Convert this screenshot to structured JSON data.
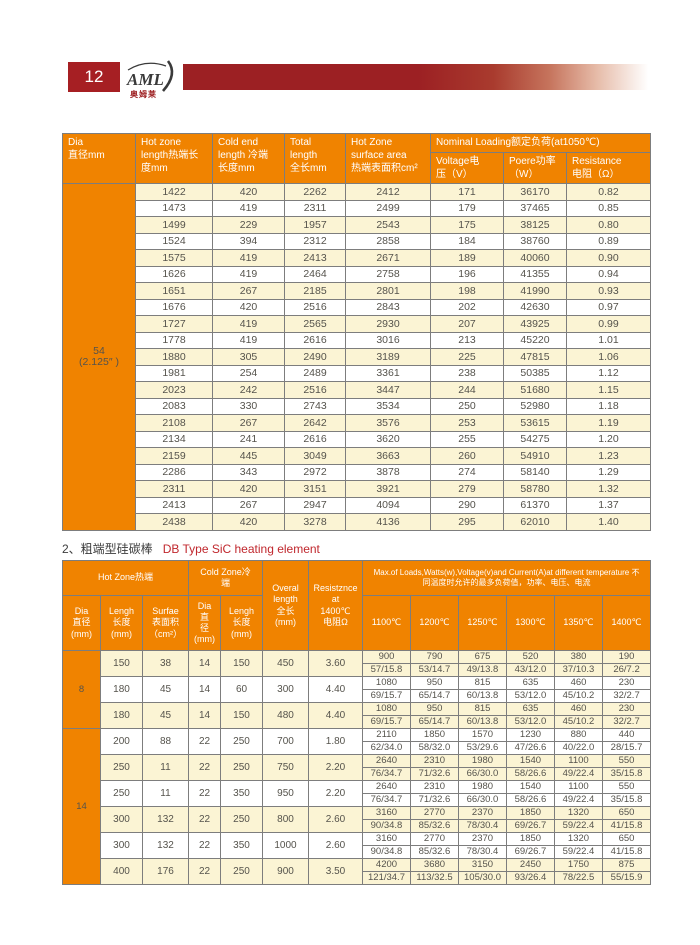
{
  "page": {
    "number": "12",
    "logo_text": "AML",
    "logo_sub": "奥姆莱"
  },
  "section2": {
    "title_zh": "2、粗端型硅碳棒",
    "title_en": "DB Type SiC heating element"
  },
  "colors": {
    "header_orange": "#F08300",
    "row_yellow": "#FBF4D4",
    "banner_red": "#9C2023",
    "badge_red": "#A61F23",
    "accent_red": "#C0272D"
  },
  "table1": {
    "header": {
      "dia": "Dia\n直径mm",
      "hot_zone": "Hot zone\nlength热端长\n度mm",
      "cold_end": "Cold end\nlength 冷端\n长度mm",
      "total": "Total\nlength\n全长mm",
      "surface": "Hot Zone\nsurface area\n热端表面积cm²",
      "nominal_group": "Nominal Loading额定负荷(at1050℃)",
      "voltage": "Voltage电\n压（V）",
      "power": "Poere功率\n（W）",
      "resistance": "Resistance\n电阻（Ω）"
    },
    "dia_label": "54\n(2.125″ )",
    "rows": [
      [
        "1422",
        "420",
        "2262",
        "2412",
        "171",
        "36170",
        "0.82"
      ],
      [
        "1473",
        "419",
        "2311",
        "2499",
        "179",
        "37465",
        "0.85"
      ],
      [
        "1499",
        "229",
        "1957",
        "2543",
        "175",
        "38125",
        "0.80"
      ],
      [
        "1524",
        "394",
        "2312",
        "2858",
        "184",
        "38760",
        "0.89"
      ],
      [
        "1575",
        "419",
        "2413",
        "2671",
        "189",
        "40060",
        "0.90"
      ],
      [
        "1626",
        "419",
        "2464",
        "2758",
        "196",
        "41355",
        "0.94"
      ],
      [
        "1651",
        "267",
        "2185",
        "2801",
        "198",
        "41990",
        "0.93"
      ],
      [
        "1676",
        "420",
        "2516",
        "2843",
        "202",
        "42630",
        "0.97"
      ],
      [
        "1727",
        "419",
        "2565",
        "2930",
        "207",
        "43925",
        "0.99"
      ],
      [
        "1778",
        "419",
        "2616",
        "3016",
        "213",
        "45220",
        "1.01"
      ],
      [
        "1880",
        "305",
        "2490",
        "3189",
        "225",
        "47815",
        "1.06"
      ],
      [
        "1981",
        "254",
        "2489",
        "3361",
        "238",
        "50385",
        "1.12"
      ],
      [
        "2023",
        "242",
        "2516",
        "3447",
        "244",
        "51680",
        "1.15"
      ],
      [
        "2083",
        "330",
        "2743",
        "3534",
        "250",
        "52980",
        "1.18"
      ],
      [
        "2108",
        "267",
        "2642",
        "3576",
        "253",
        "53615",
        "1.19"
      ],
      [
        "2134",
        "241",
        "2616",
        "3620",
        "255",
        "54275",
        "1.20"
      ],
      [
        "2159",
        "445",
        "3049",
        "3663",
        "260",
        "54910",
        "1.23"
      ],
      [
        "2286",
        "343",
        "2972",
        "3878",
        "274",
        "58140",
        "1.29"
      ],
      [
        "2311",
        "420",
        "3151",
        "3921",
        "279",
        "58780",
        "1.32"
      ],
      [
        "2413",
        "267",
        "2947",
        "4094",
        "290",
        "61370",
        "1.37"
      ],
      [
        "2438",
        "420",
        "3278",
        "4136",
        "295",
        "62010",
        "1.40"
      ]
    ]
  },
  "table2": {
    "header": {
      "hot_zone_group": "Hot Zone热端",
      "cold_zone_group": "Cold Zone冷\n端",
      "overall": "Overal\nlength\n全长\n(mm)",
      "resistance_1400": "Resistznce\nat\n1400℃\n电阻Ω",
      "max_loads": "Max.of Loads,Watts(w),Voltage(v)and Current(A)at different temperature 不同温度时允许的最多负荷值，功率、电压、电流",
      "hot_dia": "Dia\n直径\n(mm)",
      "hot_length": "Lengh\n长度\n(mm)",
      "hot_surface": "Surfae\n表面积\n（cm²）",
      "cold_dia": "Dia\n直\n径\n(mm)",
      "cold_length": "Lengh\n长度\n(mm)",
      "temps": [
        "1100℃",
        "1200℃",
        "1250℃",
        "1300℃",
        "1350℃",
        "1400℃"
      ]
    },
    "groups": [
      {
        "dia": "8",
        "rows": [
          {
            "left": [
              "150",
              "38",
              "14",
              "150",
              "450",
              "3.60"
            ],
            "line1": [
              "900",
              "790",
              "675",
              "520",
              "380",
              "190"
            ],
            "line2": [
              "57/15.8",
              "53/14.7",
              "49/13.8",
              "43/12.0",
              "37/10.3",
              "26/7.2"
            ]
          },
          {
            "left": [
              "180",
              "45",
              "14",
              "60",
              "300",
              "4.40"
            ],
            "line1": [
              "1080",
              "950",
              "815",
              "635",
              "460",
              "230"
            ],
            "line2": [
              "69/15.7",
              "65/14.7",
              "60/13.8",
              "53/12.0",
              "45/10.2",
              "32/2.7"
            ]
          },
          {
            "left": [
              "180",
              "45",
              "14",
              "150",
              "480",
              "4.40"
            ],
            "line1": [
              "1080",
              "950",
              "815",
              "635",
              "460",
              "230"
            ],
            "line2": [
              "69/15.7",
              "65/14.7",
              "60/13.8",
              "53/12.0",
              "45/10.2",
              "32/2.7"
            ]
          }
        ]
      },
      {
        "dia": "14",
        "rows": [
          {
            "left": [
              "200",
              "88",
              "22",
              "250",
              "700",
              "1.80"
            ],
            "line1": [
              "2110",
              "1850",
              "1570",
              "1230",
              "880",
              "440"
            ],
            "line2": [
              "62/34.0",
              "58/32.0",
              "53/29.6",
              "47/26.6",
              "40/22.0",
              "28/15.7"
            ]
          },
          {
            "left": [
              "250",
              "11",
              "22",
              "250",
              "750",
              "2.20"
            ],
            "line1": [
              "2640",
              "2310",
              "1980",
              "1540",
              "1100",
              "550"
            ],
            "line2": [
              "76/34.7",
              "71/32.6",
              "66/30.0",
              "58/26.6",
              "49/22.4",
              "35/15.8"
            ]
          },
          {
            "left": [
              "250",
              "11",
              "22",
              "350",
              "950",
              "2.20"
            ],
            "line1": [
              "2640",
              "2310",
              "1980",
              "1540",
              "1100",
              "550"
            ],
            "line2": [
              "76/34.7",
              "71/32.6",
              "66/30.0",
              "58/26.6",
              "49/22.4",
              "35/15.8"
            ]
          },
          {
            "left": [
              "300",
              "132",
              "22",
              "250",
              "800",
              "2.60"
            ],
            "line1": [
              "3160",
              "2770",
              "2370",
              "1850",
              "1320",
              "650"
            ],
            "line2": [
              "90/34.8",
              "85/32.6",
              "78/30.4",
              "69/26.7",
              "59/22.4",
              "41/15.8"
            ]
          },
          {
            "left": [
              "300",
              "132",
              "22",
              "350",
              "1000",
              "2.60"
            ],
            "line1": [
              "3160",
              "2770",
              "2370",
              "1850",
              "1320",
              "650"
            ],
            "line2": [
              "90/34.8",
              "85/32.6",
              "78/30.4",
              "69/26.7",
              "59/22.4",
              "41/15.8"
            ]
          },
          {
            "left": [
              "400",
              "176",
              "22",
              "250",
              "900",
              "3.50"
            ],
            "line1": [
              "4200",
              "3680",
              "3150",
              "2450",
              "1750",
              "875"
            ],
            "line2": [
              "121/34.7",
              "113/32.5",
              "105/30.0",
              "93/26.4",
              "78/22.5",
              "55/15.9"
            ]
          }
        ]
      }
    ]
  }
}
